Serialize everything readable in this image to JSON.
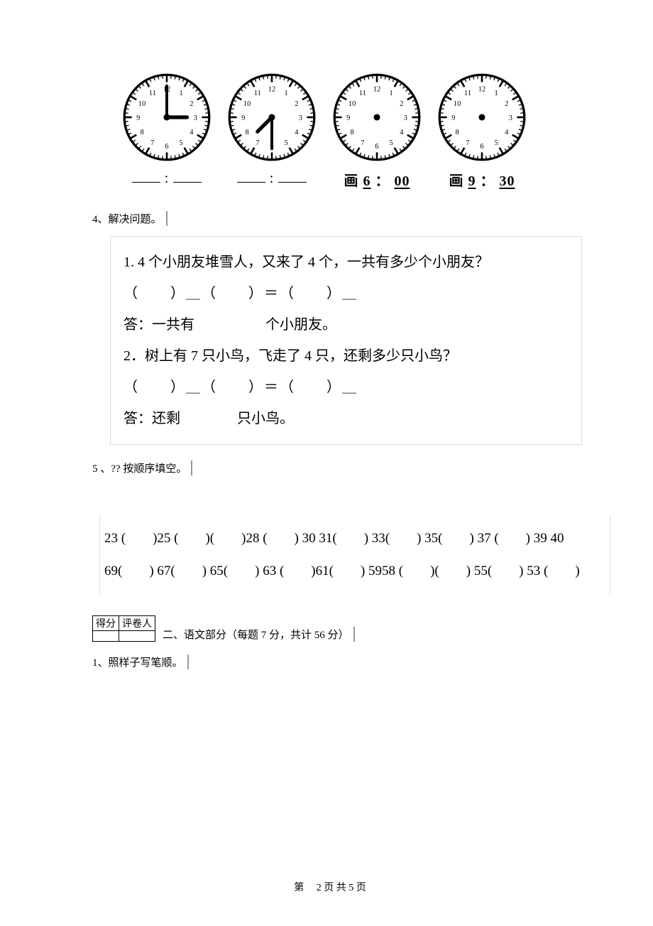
{
  "clocks": {
    "face_stroke": "#000000",
    "face_fill": "#ffffff",
    "size": 130,
    "items": [
      {
        "hour": 3,
        "minute": 0,
        "caption_type": "blank"
      },
      {
        "hour": 7,
        "minute": 30,
        "caption_type": "blank"
      },
      {
        "caption_type": "draw",
        "caption_prefix": "画",
        "time_h": "6",
        "time_m": "00"
      },
      {
        "caption_type": "draw",
        "caption_prefix": "画",
        "time_h": "9",
        "time_m": "30"
      }
    ]
  },
  "q4": {
    "heading": "4、解决问题。",
    "p1_text": "1. 4 个小朋友堆雪人，又来了 4 个，一共有多少个小朋友？",
    "p1_eq": "（　　）＿（　　）＝（　　）＿",
    "p1_ans": "答：一共有　　　　　个小朋友。",
    "p2_text": "2．树上有 7 只小鸟，飞走了 4 只，还剩多少只小鸟？",
    "p2_eq": "（　　）＿（　　）＝（　　）＿",
    "p2_ans": "答：还剩　　　　只小鸟。"
  },
  "q5": {
    "heading": "5 、?? 按顺序填空。",
    "row1": "23 (　　)25 (　　)(　　)28 (　　) 30 31(　　) 33(　　) 35(　　) 37 (　　) 39 40",
    "row2": "69(　　) 67(　　) 65(　　) 63 (　　)61(　　) 5958 (　　)(　　) 55(　　) 53 (　　)"
  },
  "score": {
    "col1": "得分",
    "col2": "评卷人"
  },
  "section2_title": "二、语文部分（每题 7 分，共计 56 分）",
  "q_s1": "1、照样子写笔顺。",
  "footer": {
    "prefix": "第",
    "page": "2 页 共 5 页"
  }
}
